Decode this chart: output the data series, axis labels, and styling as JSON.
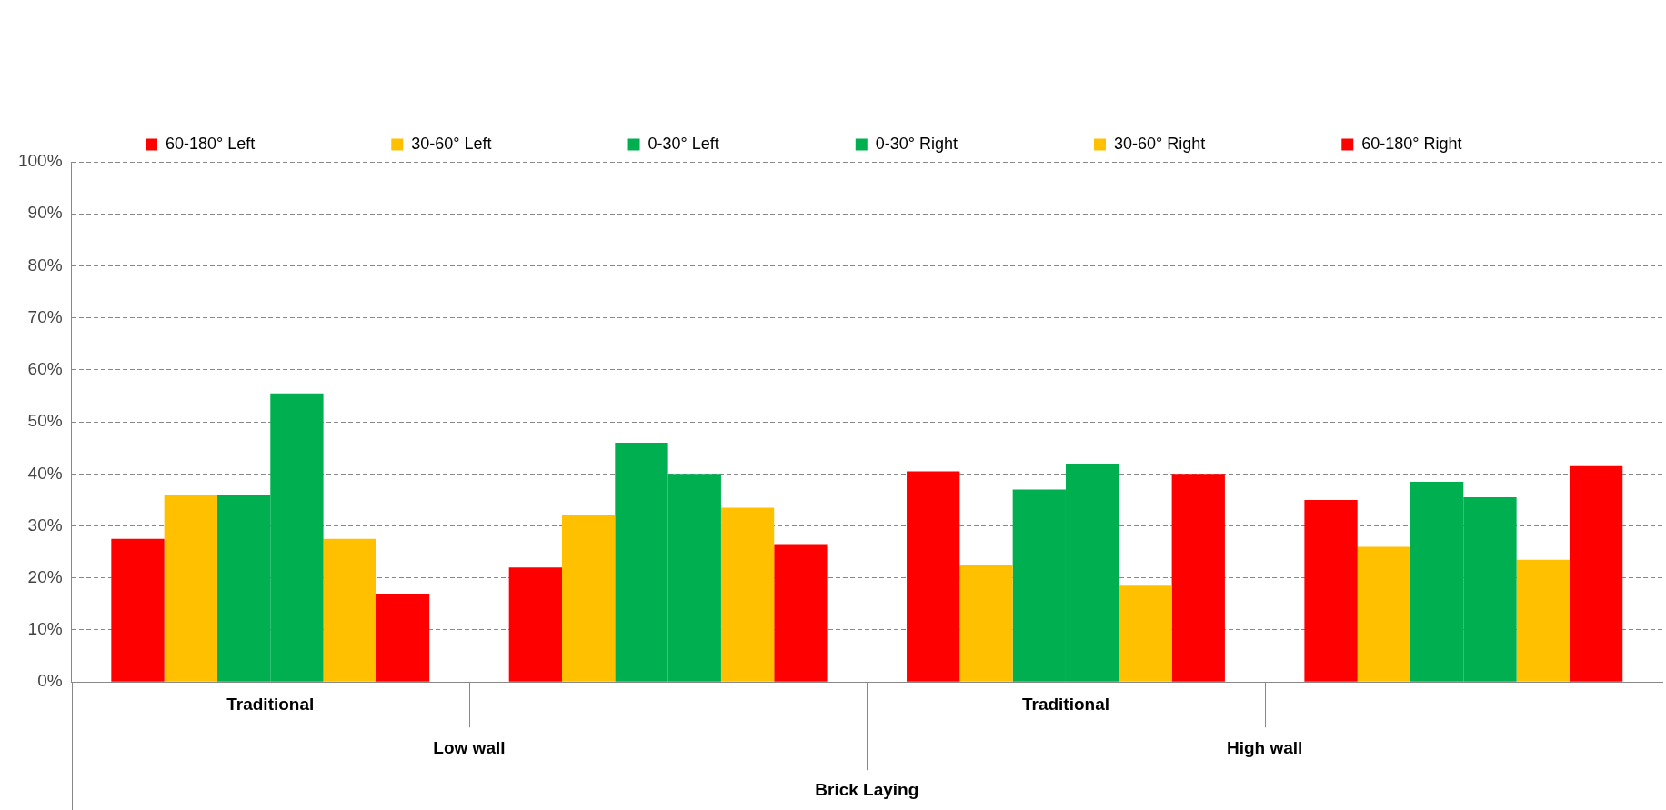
{
  "chart_data": {
    "type": "bar",
    "xlabel": "Brick Laying",
    "categories": [
      "Traditional",
      null,
      "Traditional",
      null
    ],
    "annotations": [
      "Low wall",
      "High wall"
    ],
    "series": [
      {
        "name": "60-180° Left",
        "color": "#ff0000",
        "values": [
          27.5,
          22,
          40.5,
          35
        ]
      },
      {
        "name": "30-60° Left",
        "color": "#ffc000",
        "values": [
          36,
          32,
          22.5,
          26
        ]
      },
      {
        "name": "0-30° Left",
        "color": "#00b050",
        "values": [
          36,
          46,
          37,
          38.5
        ]
      },
      {
        "name": "0-30° Right",
        "color": "#00b050",
        "values": [
          55.5,
          40,
          42,
          35.5
        ]
      },
      {
        "name": "30-60° Right",
        "color": "#ffc000",
        "values": [
          27.5,
          33.5,
          18.5,
          23.5
        ]
      },
      {
        "name": "60-180° Right",
        "color": "#ff0000",
        "values": [
          17,
          26.5,
          40,
          41.5
        ]
      }
    ],
    "ylim": [
      0,
      100
    ],
    "yticks": [
      {
        "value": 0,
        "label": "0%"
      },
      {
        "value": 10,
        "label": "10%"
      },
      {
        "value": 20,
        "label": "20%"
      },
      {
        "value": 30,
        "label": "30%"
      },
      {
        "value": 40,
        "label": "40%"
      },
      {
        "value": 50,
        "label": "50%"
      },
      {
        "value": 60,
        "label": "60%"
      },
      {
        "value": 70,
        "label": "70%"
      },
      {
        "value": 80,
        "label": "80%"
      },
      {
        "value": 90,
        "label": "90%"
      },
      {
        "value": 100,
        "label": "100%"
      }
    ],
    "grid": "y",
    "legend": "top left"
  }
}
